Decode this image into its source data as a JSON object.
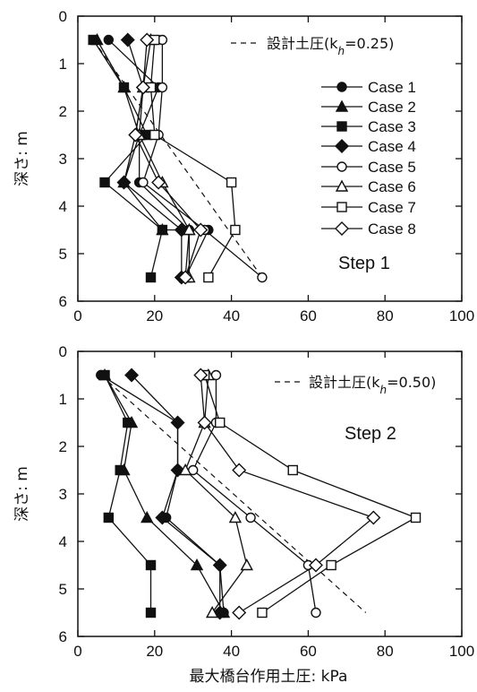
{
  "figure": {
    "xlabel": "最大橋台作用土圧: kPa"
  },
  "chart_data": [
    {
      "type": "line",
      "panel_label": "Step 1",
      "ylabel": "深さ: m",
      "xlim": [
        0,
        100
      ],
      "ylim": [
        0,
        6
      ],
      "y_inverted": true,
      "xticks": [
        "0",
        "20",
        "40",
        "60",
        "80",
        "100"
      ],
      "yticks": [
        "0",
        "1",
        "2",
        "3",
        "4",
        "5",
        "6"
      ],
      "reference_line": {
        "label": "設計土圧(k",
        "sub": "h",
        "value_text": "=0.25)",
        "points": [
          [
            4,
            0.5
          ],
          [
            48,
            5.5
          ]
        ]
      },
      "legend_position": "right",
      "series": [
        {
          "name": "Case 1",
          "marker": "circle",
          "filled": true,
          "x": [
            8,
            21,
            16,
            16,
            29,
            34,
            28
          ],
          "y": [
            0.5,
            1.5,
            2.5,
            3.5,
            4.5,
            4.5,
            5.5
          ]
        },
        {
          "name": "Case 2",
          "marker": "triangle",
          "filled": true,
          "x": [
            5,
            12,
            16,
            12,
            22,
            29,
            28
          ],
          "y": [
            0.5,
            1.5,
            2.5,
            3.5,
            4.5,
            4.5,
            5.5
          ]
        },
        {
          "name": "Case 3",
          "marker": "square",
          "filled": true,
          "x": [
            4,
            12,
            18,
            7,
            22,
            19
          ],
          "y": [
            0.5,
            1.5,
            2.5,
            3.5,
            4.5,
            5.5
          ]
        },
        {
          "name": "Case 4",
          "marker": "diamond",
          "filled": true,
          "x": [
            13,
            17,
            15,
            12,
            27,
            27
          ],
          "y": [
            0.5,
            1.5,
            2.5,
            3.5,
            4.5,
            5.5
          ]
        },
        {
          "name": "Case 5",
          "marker": "circle",
          "filled": false,
          "x": [
            22,
            22,
            21,
            17,
            33,
            48
          ],
          "y": [
            0.5,
            1.5,
            2.5,
            3.5,
            4.5,
            5.5
          ]
        },
        {
          "name": "Case 6",
          "marker": "triangle",
          "filled": false,
          "x": [
            19,
            17,
            16,
            22,
            29,
            29
          ],
          "y": [
            0.5,
            1.5,
            2.5,
            3.5,
            4.5,
            5.5
          ]
        },
        {
          "name": "Case 7",
          "marker": "square",
          "filled": false,
          "x": [
            20,
            19,
            20,
            40,
            41,
            34
          ],
          "y": [
            0.5,
            1.5,
            2.5,
            3.5,
            4.5,
            5.5
          ]
        },
        {
          "name": "Case 8",
          "marker": "diamond",
          "filled": false,
          "x": [
            18,
            17,
            15,
            21,
            32,
            28
          ],
          "y": [
            0.5,
            1.5,
            2.5,
            3.5,
            4.5,
            5.5
          ]
        }
      ]
    },
    {
      "type": "line",
      "panel_label": "Step 2",
      "ylabel": "深さ: m",
      "xlim": [
        0,
        100
      ],
      "ylim": [
        0,
        6
      ],
      "y_inverted": true,
      "xticks": [
        "0",
        "20",
        "40",
        "60",
        "80",
        "100"
      ],
      "yticks": [
        "0",
        "1",
        "2",
        "3",
        "4",
        "5",
        "6"
      ],
      "reference_line": {
        "label": "設計土圧(k",
        "sub": "h",
        "value_text": "=0.50)",
        "points": [
          [
            6,
            0.5
          ],
          [
            75,
            5.5
          ]
        ]
      },
      "series": [
        {
          "name": "Case 1",
          "marker": "circle",
          "filled": true,
          "x": [
            6,
            26,
            26,
            23,
            37,
            38
          ],
          "y": [
            0.5,
            1.5,
            2.5,
            3.5,
            4.5,
            5.5
          ]
        },
        {
          "name": "Case 2",
          "marker": "triangle",
          "filled": true,
          "x": [
            7,
            14,
            12,
            18,
            31,
            38
          ],
          "y": [
            0.5,
            1.5,
            2.5,
            3.5,
            4.5,
            5.5
          ]
        },
        {
          "name": "Case 3",
          "marker": "square",
          "filled": true,
          "x": [
            7,
            13,
            11,
            8,
            19,
            19
          ],
          "y": [
            0.5,
            1.5,
            2.5,
            3.5,
            4.5,
            5.5
          ]
        },
        {
          "name": "Case 4",
          "marker": "diamond",
          "filled": true,
          "x": [
            14,
            26,
            26,
            22,
            37,
            37
          ],
          "y": [
            0.5,
            1.5,
            2.5,
            3.5,
            4.5,
            5.5
          ]
        },
        {
          "name": "Case 5",
          "marker": "circle",
          "filled": false,
          "x": [
            36,
            36,
            30,
            45,
            60,
            62
          ],
          "y": [
            0.5,
            1.5,
            2.5,
            3.5,
            4.5,
            5.5
          ]
        },
        {
          "name": "Case 6",
          "marker": "triangle",
          "filled": false,
          "x": [
            34,
            33,
            28,
            41,
            44,
            35
          ],
          "y": [
            0.5,
            1.5,
            2.5,
            3.5,
            4.5,
            5.5
          ]
        },
        {
          "name": "Case 7",
          "marker": "square",
          "filled": false,
          "x": [
            33,
            37,
            56,
            88,
            66,
            48
          ],
          "y": [
            0.5,
            1.5,
            2.5,
            3.5,
            4.5,
            5.5
          ]
        },
        {
          "name": "Case 8",
          "marker": "diamond",
          "filled": false,
          "x": [
            32,
            33,
            42,
            77,
            62,
            42
          ],
          "y": [
            0.5,
            1.5,
            2.5,
            3.5,
            4.5,
            5.5
          ]
        }
      ]
    }
  ]
}
